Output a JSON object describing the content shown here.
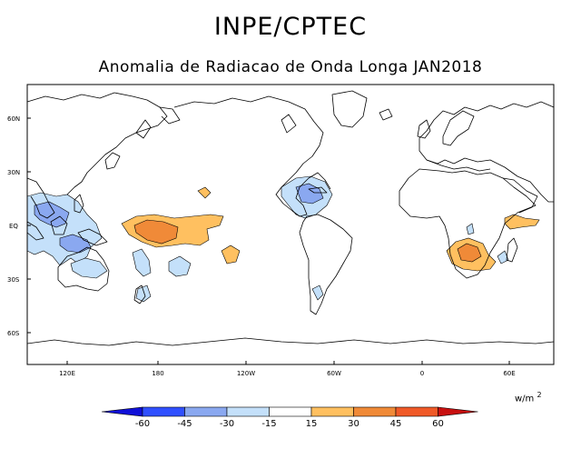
{
  "header": {
    "title": "INPE/CPTEC",
    "subtitle": "Anomalia de Radiacao de Onda Longa JAN2018"
  },
  "map": {
    "lat_ticks": [
      "60N",
      "30N",
      "EQ",
      "30S",
      "60S"
    ],
    "lon_ticks": [
      "120E",
      "180",
      "120W",
      "60W",
      "0",
      "60E"
    ]
  },
  "colorbar": {
    "units": "w/m",
    "units_exp": "2",
    "labels": [
      "-60",
      "-45",
      "-30",
      "-15",
      "15",
      "30",
      "45",
      "60"
    ],
    "colors": [
      "#1010d8",
      "#3050ff",
      "#8aa8f0",
      "#c4e0fa",
      "#ffffff",
      "#ffc060",
      "#f08a38",
      "#f05a28",
      "#c81010"
    ]
  },
  "colors": {
    "positive_1": "#ffc060",
    "positive_2": "#f08a38",
    "negative_1": "#c4e0fa",
    "negative_2": "#8aa8f0",
    "coast": "#000000"
  }
}
